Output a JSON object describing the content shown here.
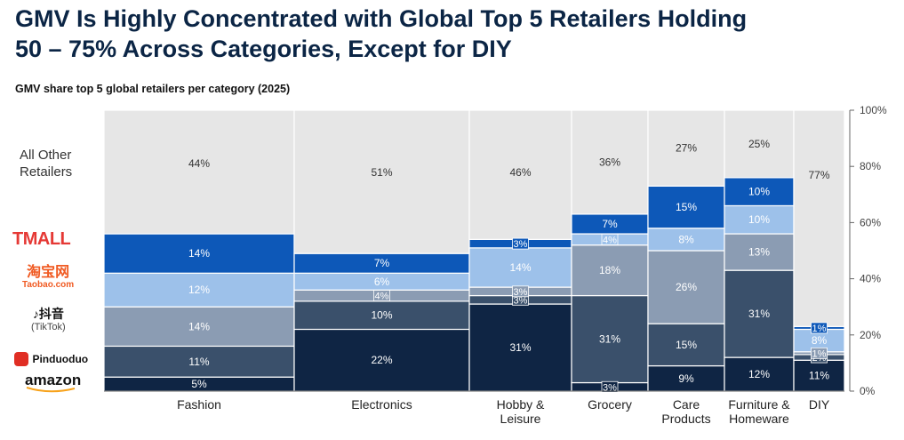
{
  "title_line1": "GMV Is Highly Concentrated with Global Top 5 Retailers Holding",
  "title_line2": "50 – 75% Across Categories, Except for DIY",
  "subtitle": "GMV share top 5 global retailers per category (2025)",
  "legend": {
    "others": "All Other Retailers",
    "tmall": "TMALL",
    "taobao_cn": "淘宝网",
    "taobao": "Taobao.com",
    "tiktok_cn": "抖音",
    "tiktok": "(TikTok)",
    "pinduoduo": "Pinduoduo",
    "amazon": "amazon"
  },
  "colors": {
    "amazon": "#0f2544",
    "pinduoduo": "#3a506b",
    "tiktok": "#8b9cb3",
    "taobao": "#9dc1ea",
    "tmall": "#0d58b8",
    "others": "#e6e6e6",
    "brand_red": "#e53935"
  },
  "chart_data": {
    "type": "marimekko",
    "title": "GMV share top 5 global retailers per category (2025)",
    "y_ticks": [
      "0%",
      "20%",
      "40%",
      "60%",
      "80%",
      "100%"
    ],
    "ylim": [
      0,
      100
    ],
    "series_order": [
      "Amazon",
      "Pinduoduo",
      "TikTok",
      "Taobao",
      "Tmall",
      "All Other Retailers"
    ],
    "categories": [
      {
        "name": "Fashion",
        "label_lines": [
          "Fashion"
        ],
        "width": 214,
        "values": [
          5,
          11,
          14,
          12,
          14,
          44
        ],
        "labels": [
          "5%",
          "11%",
          "14%",
          "12%",
          "14%",
          "44%"
        ]
      },
      {
        "name": "Electronics",
        "label_lines": [
          "Electronics"
        ],
        "width": 197,
        "values": [
          22,
          10,
          4,
          6,
          7,
          51
        ],
        "labels": [
          "22%",
          "10%",
          "4%",
          "6%",
          "7%",
          "51%"
        ]
      },
      {
        "name": "Hobby & Leisure",
        "label_lines": [
          "Hobby &",
          "Leisure"
        ],
        "width": 115,
        "values": [
          31,
          3,
          3,
          14,
          3,
          46
        ],
        "labels": [
          "31%",
          "3%",
          "3%",
          "14%",
          "3%",
          "46%"
        ]
      },
      {
        "name": "Grocery",
        "label_lines": [
          "Grocery"
        ],
        "width": 86,
        "values": [
          3,
          31,
          18,
          4,
          7,
          36
        ],
        "labels": [
          "3%",
          "31%",
          "18%",
          "4%",
          "7%",
          "36%"
        ]
      },
      {
        "name": "Care Products",
        "label_lines": [
          "Care",
          "Products"
        ],
        "width": 86,
        "values": [
          9,
          15,
          26,
          8,
          15,
          27
        ],
        "labels": [
          "9%",
          "15%",
          "26%",
          "8%",
          "15%",
          "27%"
        ]
      },
      {
        "name": "Furniture & Homeware",
        "label_lines": [
          "Furniture &",
          "Homeware"
        ],
        "width": 78,
        "values": [
          12,
          31,
          13,
          10,
          10,
          25
        ],
        "labels": [
          "12%",
          "31%",
          "13%",
          "10%",
          "10%",
          "25%"
        ]
      },
      {
        "name": "DIY",
        "label_lines": [
          "DIY"
        ],
        "width": 57,
        "values": [
          11,
          2,
          1,
          8,
          1,
          77
        ],
        "labels": [
          "11%",
          "2%",
          "1%",
          "8%",
          "1%",
          "77%"
        ]
      }
    ]
  }
}
